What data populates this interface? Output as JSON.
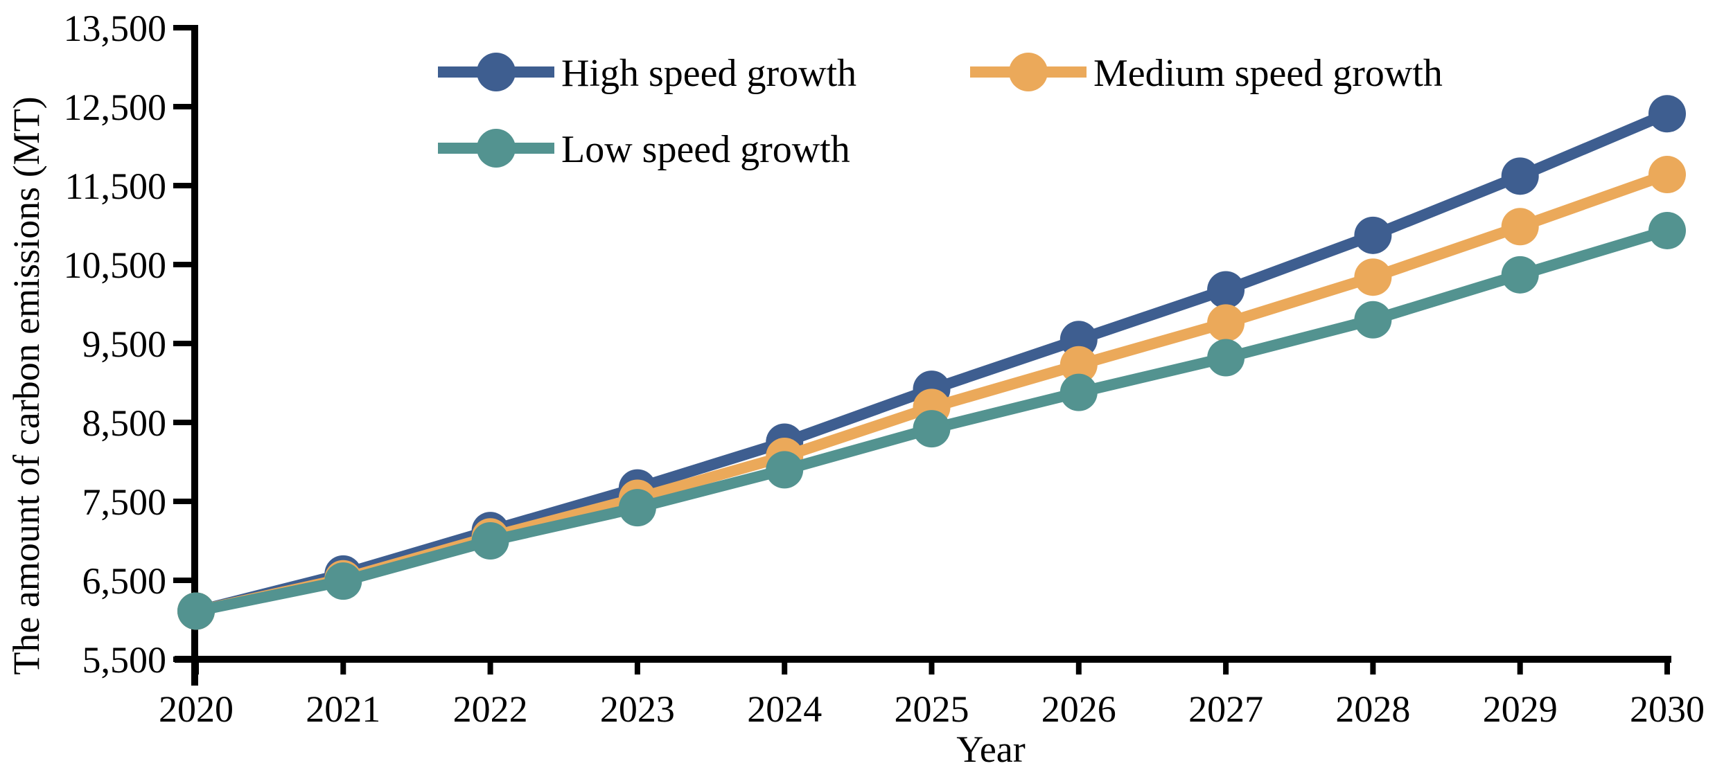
{
  "chart_data": {
    "type": "line",
    "title": "",
    "xlabel": "Year",
    "ylabel": "The amount of carbon emissions (MT)",
    "x": [
      2020,
      2021,
      2022,
      2023,
      2024,
      2025,
      2026,
      2027,
      2028,
      2029,
      2030
    ],
    "xtick_labels": [
      "2020",
      "2021",
      "2022",
      "2023",
      "2024",
      "2025",
      "2026",
      "2027",
      "2028",
      "2029",
      "2030"
    ],
    "ylim": [
      5500,
      13500
    ],
    "ytick_step": 1000,
    "ytick_labels": [
      "5,500",
      "6,500",
      "7,500",
      "8,500",
      "9,500",
      "10,500",
      "11,500",
      "12,500",
      "13,500"
    ],
    "grid": false,
    "legend_position": "top-inside-two-columns",
    "marker": "circle",
    "series": [
      {
        "name": "High speed growth",
        "color": "#3E5E90",
        "values": [
          6110,
          6580,
          7130,
          7670,
          8250,
          8920,
          9550,
          10180,
          10870,
          11620,
          12410
        ]
      },
      {
        "name": "Medium speed growth",
        "color": "#EBA95A",
        "values": [
          6110,
          6520,
          7050,
          7540,
          8070,
          8690,
          9230,
          9760,
          10340,
          10980,
          11640
        ]
      },
      {
        "name": "Low speed growth",
        "color": "#539390",
        "values": [
          6110,
          6490,
          7000,
          7420,
          7900,
          8420,
          8880,
          9320,
          9800,
          10370,
          10930
        ]
      }
    ]
  }
}
